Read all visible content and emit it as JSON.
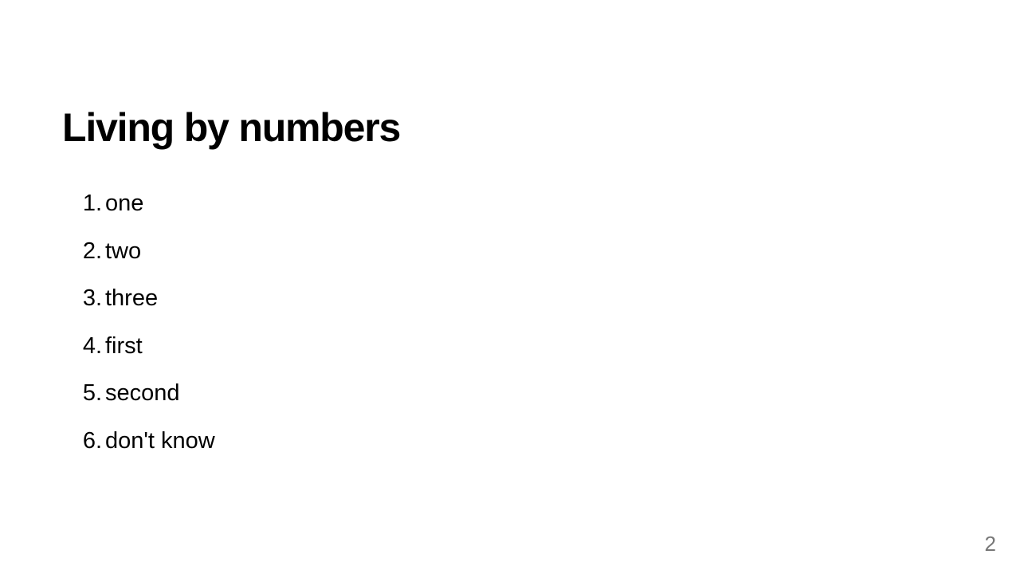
{
  "slide": {
    "title": "Living by numbers",
    "items": [
      {
        "number": "1.",
        "text": "one"
      },
      {
        "number": "2.",
        "text": "two"
      },
      {
        "number": "3.",
        "text": "three"
      },
      {
        "number": "4.",
        "text": "first"
      },
      {
        "number": "5.",
        "text": "second"
      },
      {
        "number": "6.",
        "text": "don't know"
      }
    ],
    "page_number": "2"
  },
  "colors": {
    "background": "#ffffff",
    "text": "#000000",
    "page_number": "#777777"
  }
}
